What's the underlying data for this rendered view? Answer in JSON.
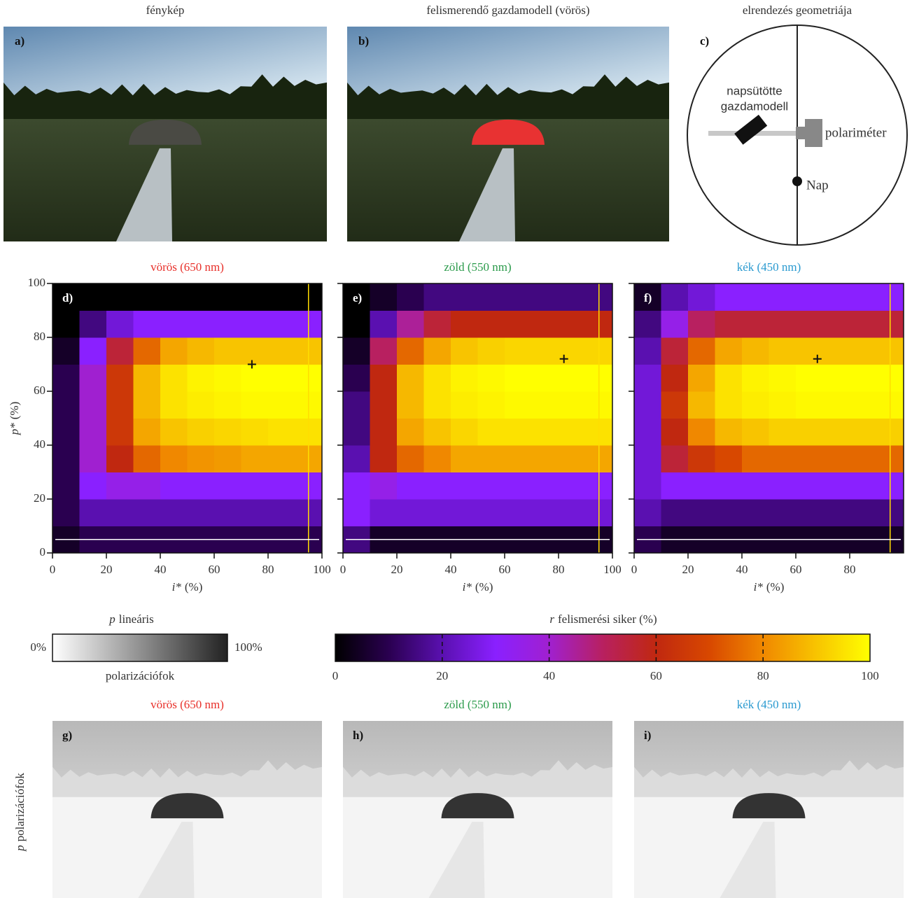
{
  "panels_top": [
    {
      "title": "fénykép",
      "label": "a)"
    },
    {
      "title": "felismerendő gazdamodell (vörös)",
      "label": "b)"
    },
    {
      "title": "elrendezés geometriája",
      "label": "c)"
    }
  ],
  "diagram": {
    "target": [
      "napsütötte",
      "gazdamodell"
    ],
    "instrument": "polariméter",
    "sun": "Nap"
  },
  "chart_data": [
    {
      "type": "heatmap",
      "title": "vörös (650 nm)",
      "title_color": "#e8302a",
      "label": "d)",
      "xbins": [
        0,
        10,
        20,
        30,
        40,
        50,
        60,
        70,
        80,
        90,
        100
      ],
      "ybins": [
        0,
        10,
        20,
        30,
        40,
        50,
        60,
        70,
        80,
        90,
        100
      ],
      "z": [
        [
          5,
          10,
          10,
          10,
          10,
          10,
          10,
          10,
          10,
          10
        ],
        [
          10,
          20,
          20,
          20,
          20,
          20,
          20,
          20,
          20,
          20
        ],
        [
          10,
          30,
          35,
          35,
          30,
          30,
          30,
          30,
          30,
          30
        ],
        [
          10,
          40,
          60,
          75,
          80,
          82,
          83,
          85,
          85,
          85
        ],
        [
          10,
          40,
          65,
          85,
          90,
          92,
          93,
          94,
          95,
          95
        ],
        [
          10,
          40,
          65,
          88,
          95,
          97,
          98,
          99,
          99,
          99
        ],
        [
          10,
          40,
          65,
          88,
          95,
          98,
          99,
          100,
          100,
          100
        ],
        [
          5,
          30,
          55,
          75,
          85,
          88,
          90,
          90,
          90,
          90
        ],
        [
          0,
          15,
          25,
          30,
          30,
          30,
          30,
          30,
          30,
          30
        ],
        [
          0,
          0,
          0,
          0,
          0,
          0,
          0,
          0,
          0,
          0
        ]
      ],
      "xlim": [
        0,
        100
      ],
      "ylim": [
        0,
        100
      ],
      "xticks": [
        0,
        20,
        40,
        60,
        80,
        100
      ],
      "yticks": [
        0,
        20,
        40,
        60,
        80,
        100
      ],
      "ytick_labels": true,
      "xlabel": {
        "var": "i*",
        "unit": "(%)"
      },
      "ylabel": {
        "var": "p*",
        "unit": "(%)"
      },
      "vline": 95,
      "vline_color": "#ffdd00",
      "hline": 5,
      "hline_color": "#ffffff",
      "marker": {
        "x": 74,
        "y": 70
      }
    },
    {
      "type": "heatmap",
      "title": "zöld (550 nm)",
      "title_color": "#2a9a4a",
      "label": "e)",
      "xbins": [
        0,
        10,
        20,
        30,
        40,
        50,
        60,
        70,
        80,
        90,
        100
      ],
      "ybins": [
        0,
        10,
        20,
        30,
        40,
        50,
        60,
        70,
        80,
        90,
        100
      ],
      "z": [
        [
          15,
          5,
          5,
          5,
          5,
          5,
          5,
          5,
          5,
          5
        ],
        [
          30,
          25,
          25,
          25,
          25,
          25,
          25,
          25,
          25,
          25
        ],
        [
          30,
          35,
          30,
          30,
          30,
          30,
          30,
          30,
          30,
          30
        ],
        [
          20,
          60,
          75,
          80,
          85,
          85,
          85,
          85,
          85,
          85
        ],
        [
          15,
          60,
          85,
          90,
          93,
          95,
          95,
          95,
          95,
          95
        ],
        [
          15,
          60,
          88,
          95,
          97,
          98,
          99,
          99,
          99,
          99
        ],
        [
          10,
          60,
          88,
          95,
          98,
          99,
          100,
          100,
          100,
          100
        ],
        [
          5,
          50,
          75,
          85,
          90,
          92,
          93,
          93,
          93,
          93
        ],
        [
          0,
          20,
          45,
          55,
          60,
          60,
          60,
          60,
          60,
          60
        ],
        [
          0,
          5,
          10,
          15,
          15,
          15,
          15,
          15,
          15,
          15
        ]
      ],
      "xlim": [
        0,
        100
      ],
      "ylim": [
        0,
        100
      ],
      "xticks": [
        0,
        20,
        40,
        60,
        80,
        100
      ],
      "yticks": [
        0,
        20,
        40,
        60,
        80,
        100
      ],
      "ytick_labels": false,
      "xlabel": {
        "var": "i*",
        "unit": "(%)"
      },
      "vline": 95,
      "vline_color": "#ffdd00",
      "hline": 5,
      "hline_color": "#ffffff",
      "marker": {
        "x": 82,
        "y": 72
      }
    },
    {
      "type": "heatmap",
      "title": "kék (450 nm)",
      "title_color": "#2a9ad0",
      "label": "f)",
      "xbins": [
        0,
        10,
        20,
        30,
        40,
        50,
        60,
        70,
        80,
        90,
        100
      ],
      "ybins": [
        0,
        10,
        20,
        30,
        40,
        50,
        60,
        70,
        80,
        90,
        100
      ],
      "z": [
        [
          10,
          5,
          5,
          5,
          5,
          5,
          5,
          5,
          5,
          5
        ],
        [
          20,
          15,
          15,
          15,
          15,
          15,
          15,
          15,
          15,
          15
        ],
        [
          25,
          30,
          30,
          30,
          30,
          30,
          30,
          30,
          30,
          30
        ],
        [
          25,
          55,
          65,
          70,
          75,
          75,
          75,
          75,
          75,
          75
        ],
        [
          25,
          60,
          80,
          88,
          90,
          92,
          92,
          92,
          92,
          92
        ],
        [
          25,
          65,
          88,
          95,
          97,
          98,
          99,
          99,
          99,
          99
        ],
        [
          25,
          60,
          85,
          95,
          98,
          99,
          100,
          100,
          100,
          100
        ],
        [
          20,
          55,
          75,
          85,
          88,
          90,
          90,
          90,
          90,
          90
        ],
        [
          15,
          35,
          50,
          55,
          55,
          55,
          55,
          55,
          55,
          55
        ],
        [
          5,
          20,
          25,
          30,
          30,
          30,
          30,
          30,
          30,
          30
        ]
      ],
      "xlim": [
        0,
        100
      ],
      "ylim": [
        0,
        100
      ],
      "xticks": [
        0,
        20,
        40,
        60,
        80
      ],
      "yticks": [
        0,
        20,
        40,
        60,
        80,
        100
      ],
      "ytick_labels": false,
      "xlabel": {
        "var": "i*",
        "unit": "(%)"
      },
      "vline": 95,
      "vline_color": "#ffdd00",
      "hline": 5,
      "hline_color": "#ffffff",
      "marker": {
        "x": 68,
        "y": 72
      }
    }
  ],
  "legend_p": {
    "title_var": "p",
    "title_rest": "lineáris",
    "min": "0%",
    "max": "100%",
    "subtitle": "polarizációfok"
  },
  "colorbar": {
    "title_var": "r",
    "title_rest": "felismerési siker (%)",
    "lim": [
      0,
      100
    ],
    "ticks": [
      0,
      20,
      40,
      60,
      80,
      100
    ],
    "colormap": [
      "#000000",
      "#2a0050",
      "#5a10b0",
      "#8a20ff",
      "#a020d0",
      "#b82060",
      "#c02810",
      "#d84800",
      "#f08800",
      "#f8c400",
      "#ffff00"
    ]
  },
  "bottom": {
    "ylabel_var": "p",
    "ylabel_rest": "polarizációfok",
    "panels": [
      {
        "title": "vörös (650 nm)",
        "title_color": "#e8302a",
        "label": "g)"
      },
      {
        "title": "zöld (550 nm)",
        "title_color": "#2a9a4a",
        "label": "h)"
      },
      {
        "title": "kék (450 nm)",
        "title_color": "#2a9ad0",
        "label": "i)"
      }
    ]
  }
}
